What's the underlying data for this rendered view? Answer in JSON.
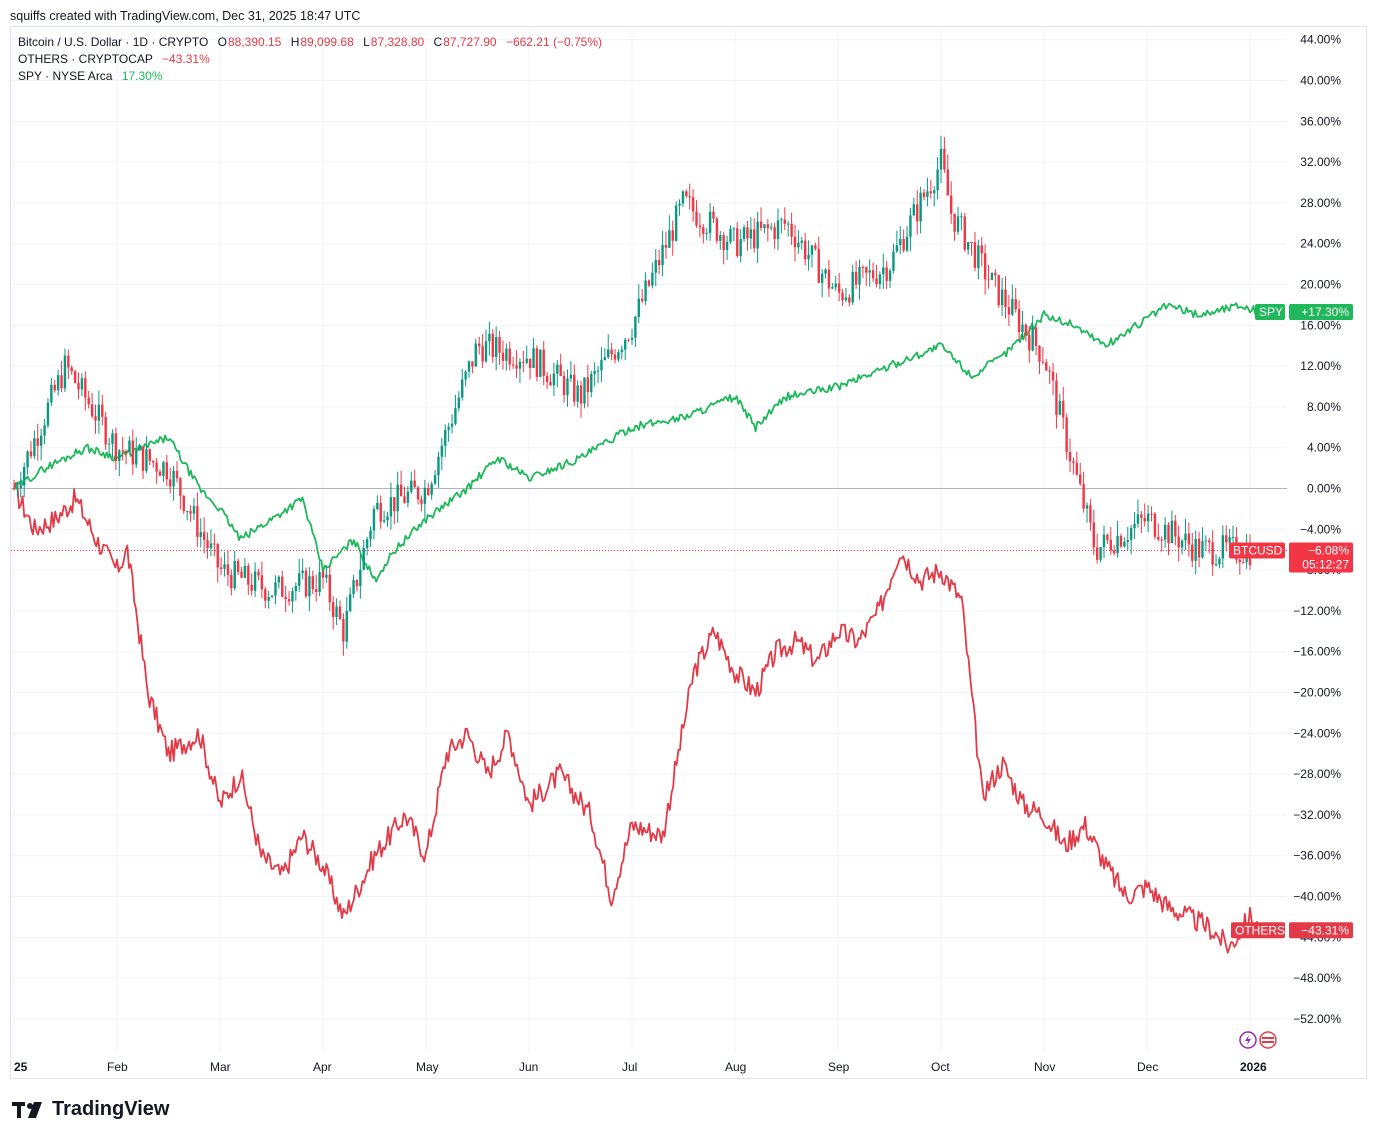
{
  "header": {
    "text": "squiffs created with TradingView.com, Dec 31, 2025 18:47 UTC"
  },
  "legend": {
    "btc": {
      "symbol": "Bitcoin / U.S. Dollar · 1D · CRYPTO",
      "open_label": "O",
      "open": "88,390.15",
      "high_label": "H",
      "high": "89,099.68",
      "low_label": "L",
      "low": "87,328.80",
      "close_label": "C",
      "close": "87,727.90",
      "change": "−662.21 (−0.75%)"
    },
    "others": {
      "symbol": "OTHERS · CRYPTOCAP",
      "value": "−43.31%"
    },
    "spy": {
      "symbol": "SPY · NYSE Arca",
      "value": "17.30%"
    }
  },
  "tags": {
    "spy": {
      "name": "SPY",
      "value": "+17.30%"
    },
    "btc": {
      "name": "BTCUSD",
      "value": "−6.08%",
      "countdown": "05:12:27"
    },
    "others": {
      "name": "OTHERS",
      "value": "−43.31%"
    }
  },
  "footer": {
    "brand": "TradingView"
  },
  "colors": {
    "up": "#089981",
    "down": "#f23645",
    "spy": "#1eb85a",
    "others": "#e23b47",
    "grid": "#f0f3fa",
    "zero": "#b2b5be"
  },
  "chart_data": {
    "type": "line",
    "y_unit": "%",
    "ylim": [
      -54,
      46
    ],
    "y_ticks": [
      44,
      40,
      36,
      32,
      28,
      24,
      20,
      16,
      12,
      8,
      4,
      0,
      -4,
      -8,
      -12,
      -16,
      -20,
      -24,
      -28,
      -32,
      -36,
      -40,
      -44,
      -48,
      -52
    ],
    "y_tick_labels": [
      "44.00%",
      "40.00%",
      "36.00%",
      "32.00%",
      "28.00%",
      "24.00%",
      "20.00%",
      "16.00%",
      "12.00%",
      "8.00%",
      "4.00%",
      "0.00%",
      "−4.00%",
      "−8.00%",
      "−12.00%",
      "−16.00%",
      "−20.00%",
      "−24.00%",
      "−28.00%",
      "−32.00%",
      "−36.00%",
      "−40.00%",
      "−44.00%",
      "−48.00%",
      "−52.00%"
    ],
    "x_months": [
      "25",
      "Feb",
      "Mar",
      "Apr",
      "May",
      "Jun",
      "Jul",
      "Aug",
      "Sep",
      "Oct",
      "Nov",
      "Dec",
      "2026"
    ],
    "x_month_index": [
      0,
      1,
      2,
      3,
      4,
      5,
      6,
      7,
      8,
      9,
      10,
      11,
      12
    ],
    "xlim": [
      0,
      12.3
    ],
    "grid": true,
    "series": [
      {
        "name": "BTCUSD",
        "style": "candles",
        "x": [
          0,
          0.5,
          1,
          1.5,
          2,
          2.5,
          3,
          3.2,
          3.5,
          4,
          4.5,
          5,
          5.5,
          6,
          6.5,
          7,
          7.5,
          8,
          8.5,
          9,
          9.1,
          9.5,
          10,
          10.5,
          11,
          11.5,
          12
        ],
        "y": [
          0,
          12,
          4,
          2,
          -8,
          -10,
          -9,
          -14,
          -2,
          0,
          14,
          13,
          9,
          16,
          28,
          24,
          26,
          19,
          22,
          32,
          27,
          20,
          13,
          -6,
          -3,
          -6,
          -6.08
        ]
      },
      {
        "name": "SPY",
        "x": [
          0,
          0.3,
          0.7,
          1,
          1.5,
          1.8,
          2,
          2.2,
          2.5,
          2.8,
          3,
          3.1,
          3.3,
          3.5,
          3.7,
          4,
          4.4,
          4.7,
          5,
          5.5,
          6,
          6.5,
          7,
          7.2,
          7.5,
          8,
          8.5,
          9,
          9.3,
          9.6,
          10,
          10.3,
          10.6,
          10.9,
          11.2,
          11.5,
          11.9,
          12.1
        ],
        "y": [
          0,
          2,
          4,
          3,
          5,
          0,
          -2,
          -5,
          -3,
          -1,
          -8,
          -7,
          -5,
          -9,
          -6,
          -3,
          0,
          3,
          1,
          3,
          6,
          7,
          9,
          6,
          9,
          10,
          12,
          14,
          11,
          13,
          17,
          16,
          14,
          16,
          18,
          17,
          18,
          17.3
        ]
      },
      {
        "name": "OTHERS",
        "x": [
          0,
          0.2,
          0.4,
          0.6,
          0.8,
          1,
          1.1,
          1.3,
          1.5,
          1.8,
          2,
          2.2,
          2.4,
          2.6,
          2.8,
          3,
          3.2,
          3.5,
          3.8,
          4,
          4.2,
          4.4,
          4.6,
          4.8,
          5,
          5.3,
          5.6,
          5.8,
          6,
          6.3,
          6.6,
          6.8,
          7,
          7.2,
          7.4,
          7.6,
          7.8,
          8,
          8.2,
          8.4,
          8.6,
          8.8,
          9,
          9.2,
          9.4,
          9.6,
          9.8,
          10,
          10.2,
          10.4,
          10.6,
          10.8,
          11,
          11.2,
          11.4,
          11.6,
          11.8,
          12,
          12.1
        ],
        "y": [
          0,
          -4,
          -3,
          -1,
          -5,
          -8,
          -6,
          -20,
          -26,
          -24,
          -31,
          -28,
          -36,
          -38,
          -34,
          -37,
          -42,
          -36,
          -32,
          -36,
          -26,
          -24,
          -28,
          -24,
          -31,
          -28,
          -32,
          -40,
          -33,
          -34,
          -18,
          -14,
          -18,
          -20,
          -16,
          -15,
          -17,
          -14,
          -15,
          -12,
          -6,
          -9,
          -8,
          -11,
          -30,
          -27,
          -31,
          -32,
          -35,
          -33,
          -37,
          -40,
          -39,
          -41,
          -42,
          -43,
          -45,
          -42,
          -43.31
        ]
      }
    ],
    "last_values": {
      "SPY": 17.3,
      "BTCUSD": -6.08,
      "OTHERS": -43.31
    }
  }
}
